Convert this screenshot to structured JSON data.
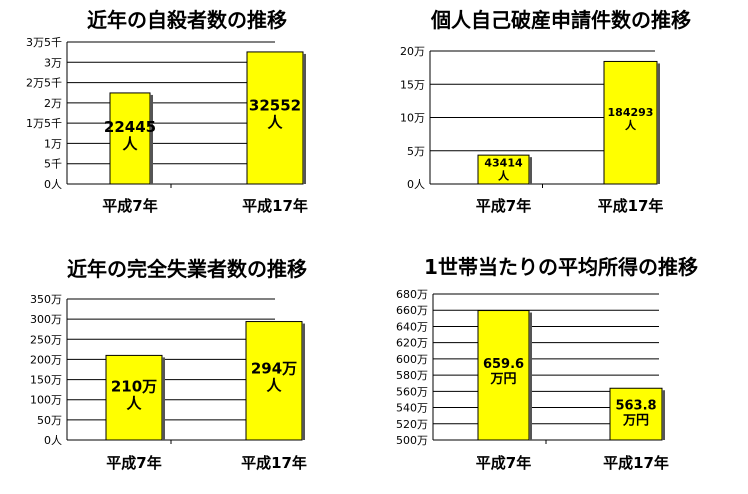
{
  "chart_data": [
    {
      "type": "bar",
      "title": "近年の自殺者数の推移",
      "categories": [
        "平成7年",
        "平成17年"
      ],
      "values": [
        22445,
        32552
      ],
      "data_labels": [
        [
          "22445",
          "人"
        ],
        [
          "32552",
          "人"
        ]
      ],
      "ylim": [
        0,
        35000
      ],
      "yticks": [
        0,
        5000,
        10000,
        15000,
        20000,
        25000,
        30000,
        35000
      ],
      "ytick_labels": [
        "0人",
        "5千",
        "1万",
        "1万5千",
        "2万",
        "2万5千",
        "3万",
        "3万5千"
      ],
      "grid": true,
      "bar_color": "#ffff00"
    },
    {
      "type": "bar",
      "title": "個人自己破産申請件数の推移",
      "categories": [
        "平成7年",
        "平成17年"
      ],
      "values": [
        43414,
        184293
      ],
      "data_labels": [
        [
          "43414",
          "人"
        ],
        [
          "184293",
          "人"
        ]
      ],
      "ylim": [
        0,
        200000
      ],
      "yticks": [
        0,
        50000,
        100000,
        150000,
        200000
      ],
      "ytick_labels": [
        "0人",
        "5万",
        "10万",
        "15万",
        "20万"
      ],
      "grid": true,
      "bar_color": "#ffff00"
    },
    {
      "type": "bar",
      "title": "近年の完全失業者数の推移",
      "categories": [
        "平成7年",
        "平成17年"
      ],
      "values": [
        210,
        294
      ],
      "data_labels": [
        [
          "210万",
          "人"
        ],
        [
          "294万",
          "人"
        ]
      ],
      "ylim": [
        0,
        350
      ],
      "yticks": [
        0,
        50,
        100,
        150,
        200,
        250,
        300,
        350
      ],
      "ytick_labels": [
        "0人",
        "50万",
        "100万",
        "150万",
        "200万",
        "250万",
        "300万",
        "350万"
      ],
      "grid": true,
      "bar_color": "#ffff00"
    },
    {
      "type": "bar",
      "title": "1世帯当たりの平均所得の推移",
      "categories": [
        "平成7年",
        "平成17年"
      ],
      "values": [
        659.6,
        563.8
      ],
      "data_labels": [
        [
          "659.6",
          "万円"
        ],
        [
          "563.8",
          "万円"
        ]
      ],
      "ylim": [
        500,
        680
      ],
      "yticks": [
        500,
        520,
        540,
        560,
        580,
        600,
        620,
        640,
        660,
        680
      ],
      "ytick_labels": [
        "500万",
        "520万",
        "540万",
        "560万",
        "580万",
        "600万",
        "620万",
        "640万",
        "660万",
        "680万"
      ],
      "grid": true,
      "bar_color": "#ffff00"
    }
  ]
}
